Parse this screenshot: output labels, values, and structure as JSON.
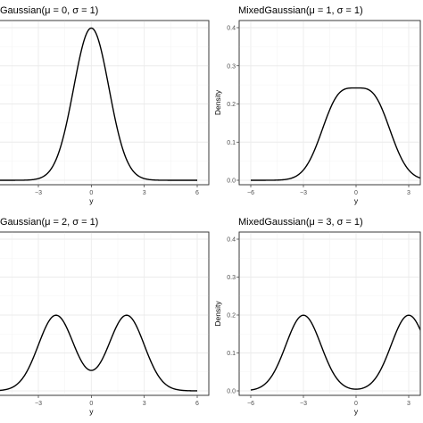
{
  "chart_data": [
    {
      "type": "line",
      "title": "Gaussian(μ = 0, σ = 1)",
      "xlabel": "y",
      "ylabel": "",
      "xlim": [
        -6,
        6
      ],
      "ylim": [
        0,
        0.4
      ],
      "x_ticks": [
        "−3",
        "0",
        "3",
        "6"
      ],
      "x_tick_values": [
        -3,
        0,
        3,
        6
      ],
      "y_ticks": [],
      "y_tick_values": [],
      "grid": true,
      "series": [
        {
          "family": "mixture",
          "mu": 0,
          "sigma": 1
        }
      ]
    },
    {
      "type": "line",
      "title": "MixedGaussian(μ = 1, σ = 1)",
      "xlabel": "y",
      "ylabel": "Density",
      "xlim": [
        -6,
        6
      ],
      "ylim": [
        0,
        0.4
      ],
      "x_ticks": [
        "−6",
        "−3",
        "0",
        "3"
      ],
      "x_tick_values": [
        -6,
        -3,
        0,
        3
      ],
      "y_ticks": [
        "0.0",
        "0.1",
        "0.2",
        "0.3",
        "0.4"
      ],
      "y_tick_values": [
        0,
        0.1,
        0.2,
        0.3,
        0.4
      ],
      "grid": true,
      "series": [
        {
          "family": "mixture",
          "mu": 1,
          "sigma": 1
        }
      ]
    },
    {
      "type": "line",
      "title": "Gaussian(μ = 2, σ = 1)",
      "xlabel": "y",
      "ylabel": "",
      "xlim": [
        -6,
        6
      ],
      "ylim": [
        0,
        0.4
      ],
      "x_ticks": [
        "−3",
        "0",
        "3",
        "6"
      ],
      "x_tick_values": [
        -3,
        0,
        3,
        6
      ],
      "y_ticks": [],
      "y_tick_values": [],
      "grid": true,
      "series": [
        {
          "family": "mixture",
          "mu": 2,
          "sigma": 1
        }
      ]
    },
    {
      "type": "line",
      "title": "MixedGaussian(μ = 3, σ = 1)",
      "xlabel": "y",
      "ylabel": "Density",
      "xlim": [
        -6,
        6
      ],
      "ylim": [
        0,
        0.4
      ],
      "x_ticks": [
        "−6",
        "−3",
        "0",
        "3"
      ],
      "x_tick_values": [
        -6,
        -3,
        0,
        3
      ],
      "y_ticks": [
        "0.0",
        "0.1",
        "0.2",
        "0.3",
        "0.4"
      ],
      "y_tick_values": [
        0,
        0.1,
        0.2,
        0.3,
        0.4
      ],
      "grid": true,
      "series": [
        {
          "family": "mixture",
          "mu": 3,
          "sigma": 1
        }
      ]
    }
  ]
}
